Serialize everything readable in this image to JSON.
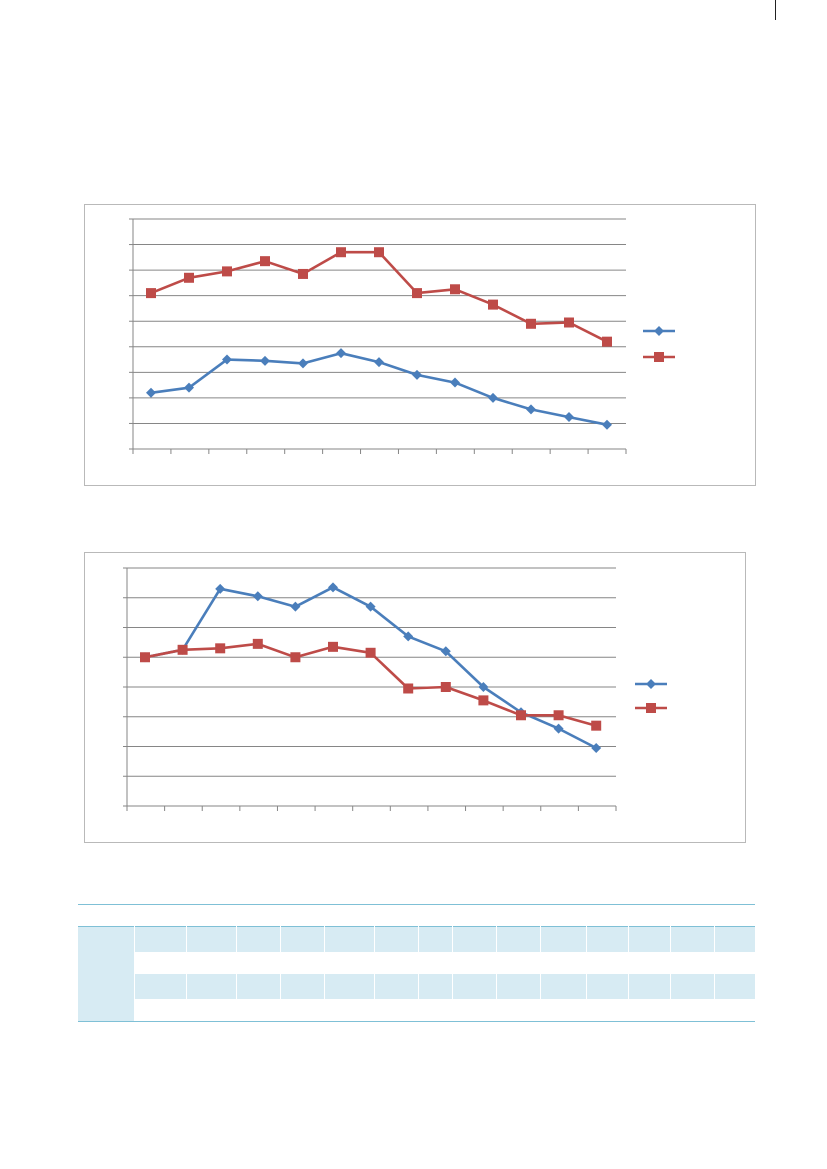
{
  "colors": {
    "series1": "#4a7ebb",
    "series2": "#be4b48",
    "grid": "#868686",
    "table_band": "#d7ebf3",
    "table_rule": "#7fc0d6"
  },
  "chart_data": [
    {
      "type": "line",
      "x": [
        1,
        2,
        3,
        4,
        5,
        6,
        7,
        8,
        9,
        10,
        11,
        12,
        13
      ],
      "ylim": [
        0,
        9
      ],
      "grid": true,
      "legend": "right",
      "series": [
        {
          "values": [
            2.2,
            2.4,
            3.5,
            3.45,
            3.35,
            3.75,
            3.4,
            2.9,
            2.6,
            2.0,
            1.55,
            1.25,
            0.95
          ]
        },
        {
          "values": [
            6.1,
            6.7,
            6.95,
            7.35,
            6.85,
            7.7,
            7.7,
            6.1,
            6.25,
            5.65,
            4.9,
            4.95,
            4.2
          ]
        }
      ]
    },
    {
      "type": "line",
      "x": [
        1,
        2,
        3,
        4,
        5,
        6,
        7,
        8,
        9,
        10,
        11,
        12,
        13
      ],
      "ylim": [
        0,
        8
      ],
      "grid": true,
      "legend": "right",
      "series": [
        {
          "values": [
            5.0,
            5.25,
            7.3,
            7.05,
            6.7,
            7.35,
            6.7,
            5.7,
            5.2,
            4.0,
            3.15,
            2.6,
            1.95
          ]
        },
        {
          "values": [
            5.0,
            5.25,
            5.3,
            5.45,
            5.0,
            5.35,
            5.15,
            3.95,
            4.0,
            3.55,
            3.05,
            3.05,
            2.7
          ]
        }
      ]
    }
  ]
}
